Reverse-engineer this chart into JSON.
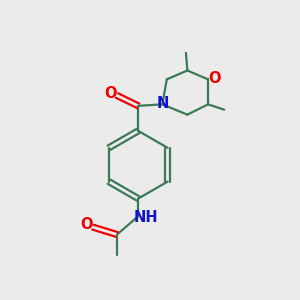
{
  "bg_color": "#ebebeb",
  "bond_color": "#3a7a55",
  "atom_colors": {
    "O": "#ee0000",
    "N": "#1111cc",
    "C": "#3a7a55"
  },
  "line_width": 1.6,
  "font_size": 10.5,
  "figsize": [
    3.0,
    3.0
  ],
  "dpi": 100
}
